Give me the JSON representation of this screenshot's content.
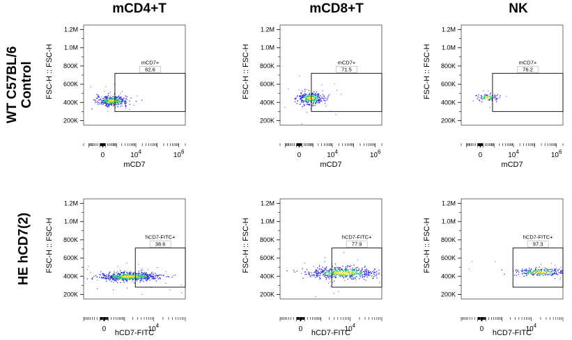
{
  "column_titles": [
    "mCD4+T",
    "mCD8+T",
    "NK"
  ],
  "row_labels": [
    {
      "line1": "WT C57BL/6",
      "line2": "Control"
    },
    {
      "line1": "HE hCD7(2)",
      "line2": ""
    }
  ],
  "colors": {
    "gate": "#000000",
    "density_low": "#2a2ad6",
    "density_mid": "#27c27a",
    "density_high": "#e8e01f"
  },
  "chart_data": [
    {
      "type": "scatter",
      "panel": "WT-mCD4+T",
      "xlabel": "mCD7",
      "ylabel": "FSC-H :: FSC-H",
      "yticks": [
        "200K",
        "400K",
        "600K",
        "800K",
        "1.0M",
        "1.2M"
      ],
      "xticks": [
        "0",
        "10^4",
        "10^6"
      ],
      "xlim": [
        -2000,
        2000000
      ],
      "ylim": [
        150000,
        1250000
      ],
      "gate": {
        "label": "mCD7+",
        "percent": "62.6",
        "x_range": [
          800,
          2000000
        ],
        "y_range": [
          300000,
          720000
        ]
      },
      "populations": [
        {
          "center_x": 500,
          "center_y": 420000,
          "spread_x": 0.35,
          "spread_y": 25000,
          "n": 380
        }
      ]
    },
    {
      "type": "scatter",
      "panel": "WT-mCD8+T",
      "xlabel": "mCD7",
      "ylabel": "FSC-H :: FSC-H",
      "yticks": [
        "200K",
        "400K",
        "600K",
        "800K",
        "1.0M",
        "1.2M"
      ],
      "xticks": [
        "0",
        "10^4",
        "10^6"
      ],
      "xlim": [
        -2000,
        2000000
      ],
      "ylim": [
        150000,
        1250000
      ],
      "gate": {
        "label": "mCD7+",
        "percent": "71.5",
        "x_range": [
          800,
          2000000
        ],
        "y_range": [
          300000,
          720000
        ]
      },
      "populations": [
        {
          "center_x": 700,
          "center_y": 450000,
          "spread_x": 0.3,
          "spread_y": 35000,
          "n": 320
        }
      ]
    },
    {
      "type": "scatter",
      "panel": "WT-NK",
      "xlabel": "mCD7",
      "ylabel": "FSC-H :: FSC-H",
      "yticks": [
        "200K",
        "400K",
        "600K",
        "800K",
        "1.0M",
        "1.2M"
      ],
      "xticks": [
        "0",
        "10^4",
        "10^6"
      ],
      "xlim": [
        -2000,
        2000000
      ],
      "ylim": [
        150000,
        1250000
      ],
      "gate": {
        "label": "mCD7+",
        "percent": "76.2",
        "x_range": [
          800,
          2000000
        ],
        "y_range": [
          300000,
          720000
        ]
      },
      "populations": [
        {
          "center_x": 350,
          "center_y": 460000,
          "spread_x": 0.25,
          "spread_y": 18000,
          "n": 90
        }
      ]
    },
    {
      "type": "scatter",
      "panel": "HE-mCD4+T",
      "xlabel": "hCD7-FITC",
      "ylabel": "FSC-H :: FSC-H",
      "yticks": [
        "200K",
        "400K",
        "600K",
        "800K",
        "1.0M",
        "1.2M"
      ],
      "xticks": [
        "0",
        "10^4"
      ],
      "xlim": [
        -1000,
        100000
      ],
      "ylim": [
        150000,
        1250000
      ],
      "gate": {
        "label": "hCD7-FITC+",
        "percent": "38.6",
        "x_range": [
          2500,
          100000
        ],
        "y_range": [
          280000,
          710000
        ]
      },
      "populations": [
        {
          "center_x": 1500,
          "center_y": 400000,
          "spread_x": 0.45,
          "spread_y": 22000,
          "n": 650
        }
      ]
    },
    {
      "type": "scatter",
      "panel": "HE-mCD8+T",
      "xlabel": "hCD7-FITC",
      "ylabel": "FSC-H :: FSC-H",
      "yticks": [
        "200K",
        "400K",
        "600K",
        "800K",
        "1.0M",
        "1.2M"
      ],
      "xticks": [
        "0",
        "10^4"
      ],
      "xlim": [
        -1000,
        100000
      ],
      "ylim": [
        150000,
        1250000
      ],
      "gate": {
        "label": "hCD7-FITC+",
        "percent": "77.9",
        "x_range": [
          2500,
          100000
        ],
        "y_range": [
          280000,
          710000
        ]
      },
      "populations": [
        {
          "center_x": 6000,
          "center_y": 440000,
          "spread_x": 0.55,
          "spread_y": 30000,
          "n": 520
        }
      ]
    },
    {
      "type": "scatter",
      "panel": "HE-NK",
      "xlabel": "hCD7-FITC",
      "ylabel": "FSC-H :: FSC-H",
      "yticks": [
        "200K",
        "400K",
        "600K",
        "800K",
        "1.0M",
        "1.2M"
      ],
      "xticks": [
        "0",
        "10^4"
      ],
      "xlim": [
        -1000,
        100000
      ],
      "ylim": [
        150000,
        1250000
      ],
      "gate": {
        "label": "hCD7-FITC+",
        "percent": "97.3",
        "x_range": [
          2500,
          100000
        ],
        "y_range": [
          280000,
          710000
        ]
      },
      "populations": [
        {
          "center_x": 18000,
          "center_y": 450000,
          "spread_x": 0.4,
          "spread_y": 20000,
          "n": 260
        }
      ]
    }
  ]
}
